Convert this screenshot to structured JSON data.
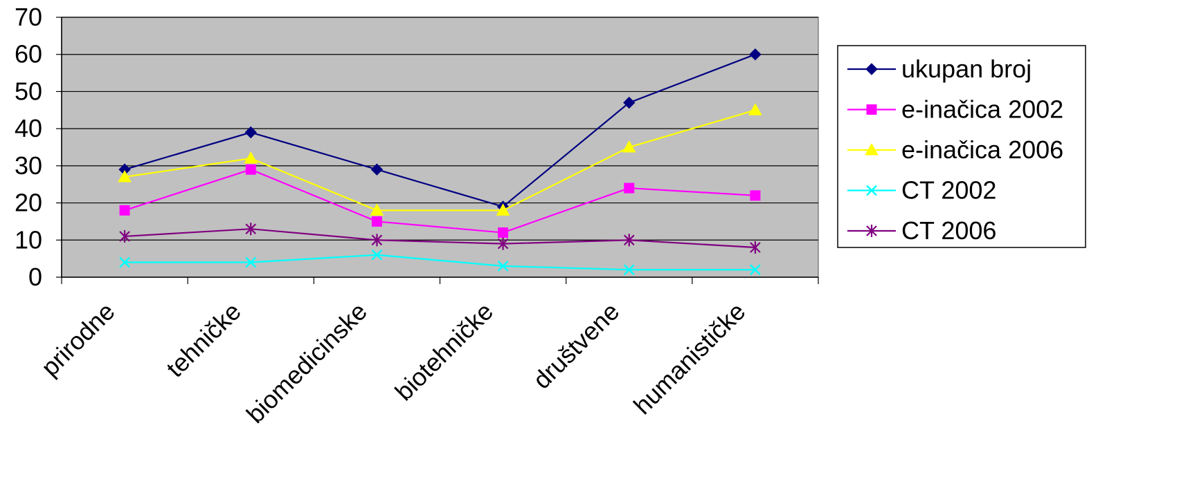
{
  "chart_data": {
    "type": "line",
    "categories": [
      "prirodne",
      "tehničke",
      "biomedicinske",
      "biotehničke",
      "društvene",
      "humanističke"
    ],
    "ylim": [
      0,
      70
    ],
    "yticks": [
      0,
      10,
      20,
      30,
      40,
      50,
      60,
      70
    ],
    "grid": "horizontal",
    "legend_position": "right",
    "plot_background": "#c0c0c0",
    "series": [
      {
        "name": "ukupan broj",
        "values": [
          29,
          39,
          29,
          19,
          47,
          60
        ],
        "color": "#000080",
        "marker": "diamond"
      },
      {
        "name": "e-inačica 2002",
        "values": [
          18,
          29,
          15,
          12,
          24,
          22
        ],
        "color": "#ff00ff",
        "marker": "square"
      },
      {
        "name": "e-inačica 2006",
        "values": [
          27,
          32,
          18,
          18,
          35,
          45
        ],
        "color": "#ffff00",
        "marker": "triangle"
      },
      {
        "name": "CT 2002",
        "values": [
          4,
          4,
          6,
          3,
          2,
          2
        ],
        "color": "#00ffff",
        "marker": "x"
      },
      {
        "name": "CT 2006",
        "values": [
          11,
          13,
          10,
          9,
          10,
          8
        ],
        "color": "#800080",
        "marker": "asterisk"
      }
    ]
  }
}
